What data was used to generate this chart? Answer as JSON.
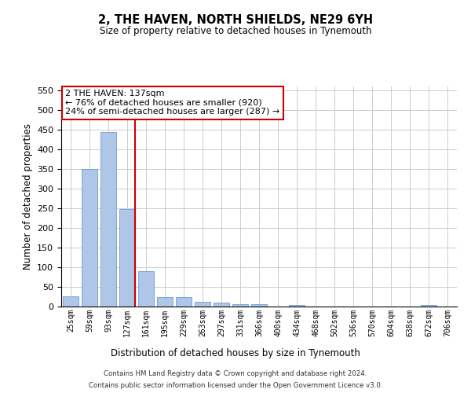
{
  "title": "2, THE HAVEN, NORTH SHIELDS, NE29 6YH",
  "subtitle": "Size of property relative to detached houses in Tynemouth",
  "xlabel": "Distribution of detached houses by size in Tynemouth",
  "ylabel": "Number of detached properties",
  "categories": [
    "25sqm",
    "59sqm",
    "93sqm",
    "127sqm",
    "161sqm",
    "195sqm",
    "229sqm",
    "263sqm",
    "297sqm",
    "331sqm",
    "366sqm",
    "400sqm",
    "434sqm",
    "468sqm",
    "502sqm",
    "536sqm",
    "570sqm",
    "604sqm",
    "638sqm",
    "672sqm",
    "706sqm"
  ],
  "values": [
    27,
    350,
    445,
    248,
    90,
    25,
    25,
    13,
    11,
    7,
    6,
    0,
    5,
    0,
    0,
    0,
    0,
    0,
    0,
    5,
    0
  ],
  "bar_color": "#aec6e8",
  "bar_edge_color": "#5a8fc2",
  "vline_x_index": 3,
  "vline_color": "#cc0000",
  "annotation_text": "2 THE HAVEN: 137sqm\n← 76% of detached houses are smaller (920)\n24% of semi-detached houses are larger (287) →",
  "annotation_box_color": "#ffffff",
  "annotation_box_edge_color": "#cc0000",
  "ylim": [
    0,
    560
  ],
  "yticks": [
    0,
    50,
    100,
    150,
    200,
    250,
    300,
    350,
    400,
    450,
    500,
    550
  ],
  "footer_line1": "Contains HM Land Registry data © Crown copyright and database right 2024.",
  "footer_line2": "Contains public sector information licensed under the Open Government Licence v3.0.",
  "grid_color": "#cccccc",
  "background_color": "#ffffff",
  "fig_width": 6.0,
  "fig_height": 5.0,
  "dpi": 100
}
